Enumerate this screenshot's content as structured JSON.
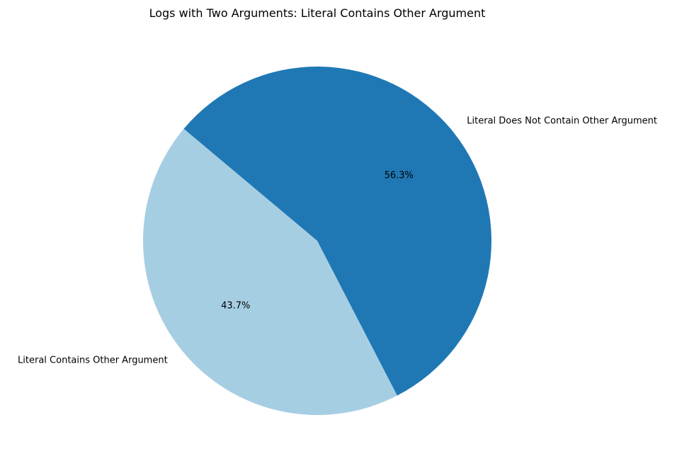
{
  "chart_data": {
    "type": "pie",
    "title": "Logs with Two Arguments: Literal Contains Other Argument",
    "slices": [
      {
        "label": "Literal Contains Other Argument",
        "value": 43.7,
        "pct_label": "43.7%",
        "color": "#a6cee3"
      },
      {
        "label": "Literal Does Not Contain Other Argument",
        "value": 56.3,
        "pct_label": "56.3%",
        "color": "#1f78b4"
      }
    ],
    "start_angle_deg": 140,
    "legend": "none"
  }
}
